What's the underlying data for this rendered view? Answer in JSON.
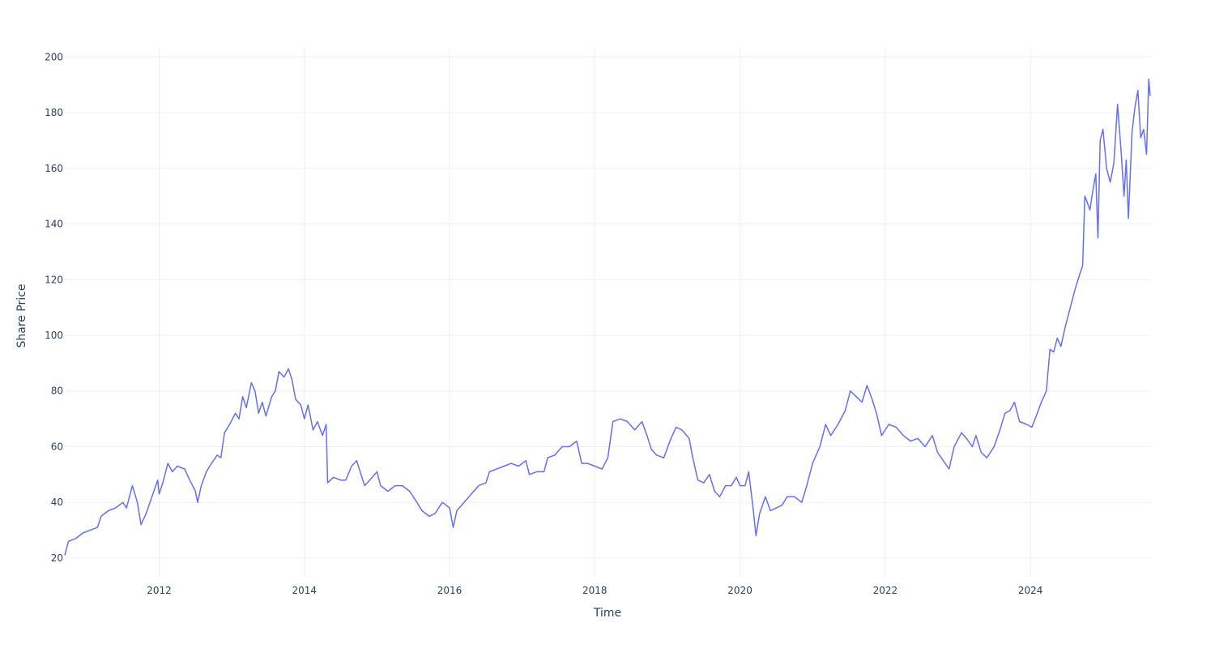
{
  "chart_data": {
    "type": "line",
    "title": "",
    "xlabel": "Time",
    "ylabel": "Share Price",
    "xlim": [
      2010.7,
      2025.65
    ],
    "ylim": [
      13,
      203
    ],
    "grid": true,
    "legend": "none",
    "x_ticks": [
      {
        "value": 2012,
        "label": "2012"
      },
      {
        "value": 2014,
        "label": "2014"
      },
      {
        "value": 2016,
        "label": "2016"
      },
      {
        "value": 2018,
        "label": "2018"
      },
      {
        "value": 2020,
        "label": "2020"
      },
      {
        "value": 2022,
        "label": "2022"
      },
      {
        "value": 2024,
        "label": "2024"
      }
    ],
    "y_ticks": [
      {
        "value": 20,
        "label": "20"
      },
      {
        "value": 40,
        "label": "40"
      },
      {
        "value": 60,
        "label": "60"
      },
      {
        "value": 80,
        "label": "80"
      },
      {
        "value": 100,
        "label": "100"
      },
      {
        "value": 120,
        "label": "120"
      },
      {
        "value": 140,
        "label": "140"
      },
      {
        "value": 160,
        "label": "160"
      },
      {
        "value": 180,
        "label": "180"
      },
      {
        "value": 200,
        "label": "200"
      }
    ],
    "series": [
      {
        "color": "#636efa",
        "points": [
          [
            2010.7,
            21
          ],
          [
            2010.75,
            26
          ],
          [
            2010.85,
            27
          ],
          [
            2010.95,
            29
          ],
          [
            2011.05,
            30
          ],
          [
            2011.15,
            31
          ],
          [
            2011.2,
            35
          ],
          [
            2011.3,
            37
          ],
          [
            2011.4,
            38
          ],
          [
            2011.5,
            40
          ],
          [
            2011.55,
            38
          ],
          [
            2011.63,
            46
          ],
          [
            2011.7,
            40
          ],
          [
            2011.75,
            32
          ],
          [
            2011.82,
            36
          ],
          [
            2011.9,
            42
          ],
          [
            2011.98,
            48
          ],
          [
            2012.0,
            43
          ],
          [
            2012.05,
            47
          ],
          [
            2012.12,
            54
          ],
          [
            2012.18,
            51
          ],
          [
            2012.25,
            53
          ],
          [
            2012.35,
            52
          ],
          [
            2012.42,
            48
          ],
          [
            2012.5,
            44
          ],
          [
            2012.53,
            40
          ],
          [
            2012.58,
            46
          ],
          [
            2012.65,
            51
          ],
          [
            2012.72,
            54
          ],
          [
            2012.8,
            57
          ],
          [
            2012.85,
            56
          ],
          [
            2012.9,
            65
          ],
          [
            2012.97,
            68
          ],
          [
            2013.05,
            72
          ],
          [
            2013.1,
            70
          ],
          [
            2013.15,
            78
          ],
          [
            2013.2,
            74
          ],
          [
            2013.27,
            83
          ],
          [
            2013.32,
            80
          ],
          [
            2013.37,
            72
          ],
          [
            2013.42,
            76
          ],
          [
            2013.47,
            71
          ],
          [
            2013.55,
            78
          ],
          [
            2013.6,
            80
          ],
          [
            2013.65,
            87
          ],
          [
            2013.72,
            85
          ],
          [
            2013.78,
            88
          ],
          [
            2013.83,
            84
          ],
          [
            2013.88,
            77
          ],
          [
            2013.95,
            75
          ],
          [
            2014.0,
            70
          ],
          [
            2014.05,
            75
          ],
          [
            2014.12,
            66
          ],
          [
            2014.18,
            69
          ],
          [
            2014.25,
            64
          ],
          [
            2014.3,
            68
          ],
          [
            2014.32,
            47
          ],
          [
            2014.4,
            49
          ],
          [
            2014.5,
            48
          ],
          [
            2014.57,
            48
          ],
          [
            2014.65,
            53
          ],
          [
            2014.72,
            55
          ],
          [
            2014.78,
            50
          ],
          [
            2014.83,
            46
          ],
          [
            2014.9,
            48
          ],
          [
            2015.0,
            51
          ],
          [
            2015.05,
            46
          ],
          [
            2015.15,
            44
          ],
          [
            2015.25,
            46
          ],
          [
            2015.35,
            46
          ],
          [
            2015.45,
            44
          ],
          [
            2015.55,
            40
          ],
          [
            2015.62,
            37
          ],
          [
            2015.72,
            35
          ],
          [
            2015.8,
            36
          ],
          [
            2015.9,
            40
          ],
          [
            2016.0,
            38
          ],
          [
            2016.05,
            31
          ],
          [
            2016.1,
            37
          ],
          [
            2016.2,
            40
          ],
          [
            2016.3,
            43
          ],
          [
            2016.4,
            46
          ],
          [
            2016.5,
            47
          ],
          [
            2016.55,
            51
          ],
          [
            2016.65,
            52
          ],
          [
            2016.75,
            53
          ],
          [
            2016.85,
            54
          ],
          [
            2016.95,
            53
          ],
          [
            2017.05,
            55
          ],
          [
            2017.1,
            50
          ],
          [
            2017.2,
            51
          ],
          [
            2017.3,
            51
          ],
          [
            2017.35,
            56
          ],
          [
            2017.45,
            57
          ],
          [
            2017.55,
            60
          ],
          [
            2017.65,
            60
          ],
          [
            2017.75,
            62
          ],
          [
            2017.82,
            54
          ],
          [
            2017.9,
            54
          ],
          [
            2018.0,
            53
          ],
          [
            2018.1,
            52
          ],
          [
            2018.18,
            56
          ],
          [
            2018.25,
            69
          ],
          [
            2018.35,
            70
          ],
          [
            2018.45,
            69
          ],
          [
            2018.55,
            66
          ],
          [
            2018.65,
            69
          ],
          [
            2018.72,
            64
          ],
          [
            2018.78,
            59
          ],
          [
            2018.85,
            57
          ],
          [
            2018.95,
            56
          ],
          [
            2019.05,
            63
          ],
          [
            2019.12,
            67
          ],
          [
            2019.2,
            66
          ],
          [
            2019.3,
            63
          ],
          [
            2019.35,
            56
          ],
          [
            2019.42,
            48
          ],
          [
            2019.5,
            47
          ],
          [
            2019.58,
            50
          ],
          [
            2019.65,
            44
          ],
          [
            2019.72,
            42
          ],
          [
            2019.8,
            46
          ],
          [
            2019.88,
            46
          ],
          [
            2019.95,
            49
          ],
          [
            2020.0,
            46
          ],
          [
            2020.07,
            46
          ],
          [
            2020.12,
            51
          ],
          [
            2020.18,
            38
          ],
          [
            2020.22,
            28
          ],
          [
            2020.27,
            36
          ],
          [
            2020.35,
            42
          ],
          [
            2020.42,
            37
          ],
          [
            2020.5,
            38
          ],
          [
            2020.58,
            39
          ],
          [
            2020.65,
            42
          ],
          [
            2020.75,
            42
          ],
          [
            2020.85,
            40
          ],
          [
            2020.92,
            46
          ],
          [
            2021.0,
            54
          ],
          [
            2021.1,
            60
          ],
          [
            2021.18,
            68
          ],
          [
            2021.25,
            64
          ],
          [
            2021.35,
            68
          ],
          [
            2021.45,
            73
          ],
          [
            2021.52,
            80
          ],
          [
            2021.6,
            78
          ],
          [
            2021.68,
            76
          ],
          [
            2021.75,
            82
          ],
          [
            2021.82,
            77
          ],
          [
            2021.88,
            72
          ],
          [
            2021.95,
            64
          ],
          [
            2022.05,
            68
          ],
          [
            2022.15,
            67
          ],
          [
            2022.25,
            64
          ],
          [
            2022.35,
            62
          ],
          [
            2022.45,
            63
          ],
          [
            2022.55,
            60
          ],
          [
            2022.65,
            64
          ],
          [
            2022.72,
            58
          ],
          [
            2022.8,
            55
          ],
          [
            2022.88,
            52
          ],
          [
            2022.95,
            60
          ],
          [
            2023.05,
            65
          ],
          [
            2023.12,
            63
          ],
          [
            2023.2,
            60
          ],
          [
            2023.25,
            64
          ],
          [
            2023.32,
            58
          ],
          [
            2023.4,
            56
          ],
          [
            2023.5,
            60
          ],
          [
            2023.58,
            66
          ],
          [
            2023.65,
            72
          ],
          [
            2023.72,
            73
          ],
          [
            2023.78,
            76
          ],
          [
            2023.85,
            69
          ],
          [
            2023.95,
            68
          ],
          [
            2024.02,
            67
          ],
          [
            2024.08,
            71
          ],
          [
            2024.15,
            76
          ],
          [
            2024.22,
            80
          ],
          [
            2024.27,
            95
          ],
          [
            2024.32,
            94
          ],
          [
            2024.37,
            99
          ],
          [
            2024.42,
            96
          ],
          [
            2024.48,
            103
          ],
          [
            2024.55,
            110
          ],
          [
            2024.62,
            117
          ],
          [
            2024.68,
            122
          ],
          [
            2024.72,
            125
          ],
          [
            2024.75,
            150
          ],
          [
            2024.78,
            148
          ],
          [
            2024.82,
            145
          ],
          [
            2024.86,
            152
          ],
          [
            2024.9,
            158
          ],
          [
            2024.93,
            135
          ],
          [
            2024.96,
            170
          ],
          [
            2025.0,
            174
          ],
          [
            2025.05,
            160
          ],
          [
            2025.1,
            155
          ],
          [
            2025.15,
            162
          ],
          [
            2025.2,
            183
          ],
          [
            2025.25,
            166
          ],
          [
            2025.29,
            150
          ],
          [
            2025.32,
            163
          ],
          [
            2025.35,
            142
          ],
          [
            2025.4,
            173
          ],
          [
            2025.44,
            182
          ],
          [
            2025.48,
            188
          ],
          [
            2025.52,
            171
          ],
          [
            2025.56,
            174
          ],
          [
            2025.6,
            165
          ],
          [
            2025.63,
            192
          ],
          [
            2025.65,
            186
          ]
        ]
      }
    ]
  }
}
